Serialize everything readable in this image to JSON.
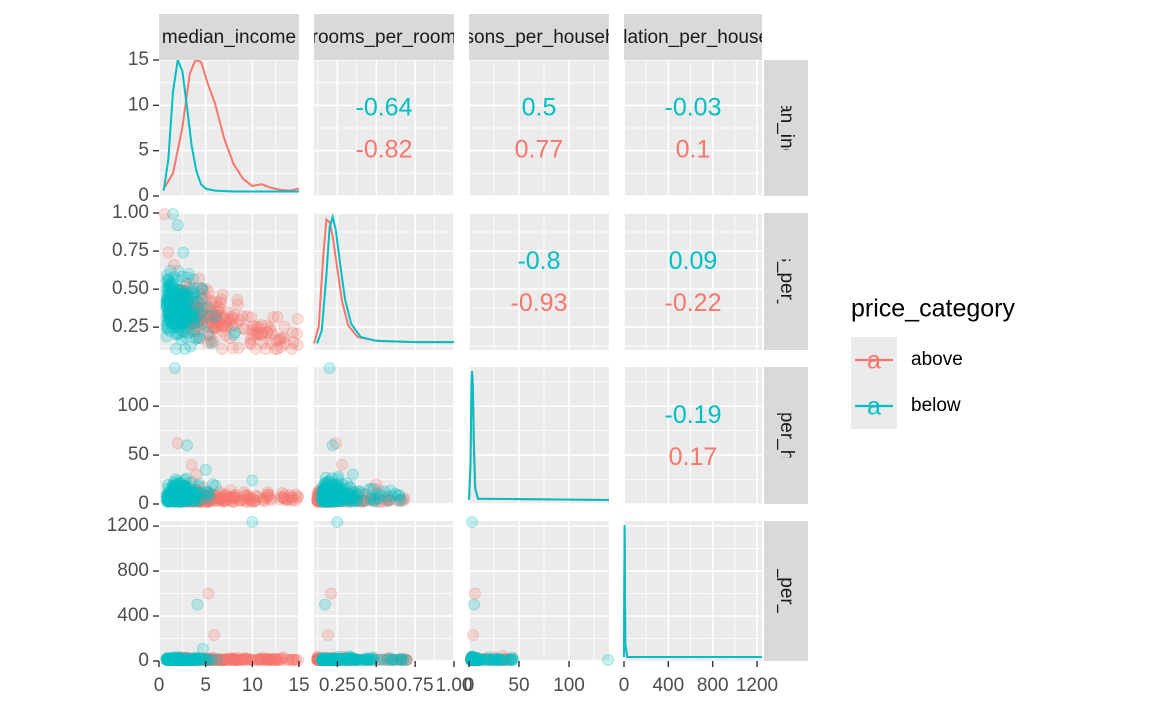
{
  "chart_data": {
    "type": "scatter",
    "variables": [
      "median_income",
      "rooms_per_room",
      "persons_per_household",
      "population_per_household"
    ],
    "strip_labels": {
      "columns": [
        "median_income",
        "rooms_per_room",
        "persons_per_household",
        "population_per_household"
      ],
      "rows": [
        "median_income",
        "rooms_per_room",
        "persons_per_household",
        "population_per_household"
      ]
    },
    "legend": {
      "title": "price_category",
      "key_glyph": "a",
      "placement": "right",
      "entries": [
        {
          "label": "above",
          "color": "#F8766D"
        },
        {
          "label": "below",
          "color": "#00BFC4"
        }
      ]
    },
    "colors": {
      "above": "#F8766D",
      "below": "#00BFC4",
      "panel_bg": "#EBEBEB",
      "strip_bg": "#D9D9D9",
      "grid": "#FFFFFF"
    },
    "axes": {
      "median_income": {
        "lim": [
          0,
          15
        ],
        "ticks": [
          0,
          5,
          10,
          15
        ],
        "tick_labels": [
          "0",
          "5",
          "10",
          "15"
        ]
      },
      "rooms_per_room": {
        "lim": [
          0.1,
          1.0
        ],
        "ticks": [
          0.25,
          0.5,
          0.75,
          1.0
        ],
        "tick_labels": [
          "0.25",
          "0.50",
          "0.75",
          "1.00"
        ]
      },
      "persons_per_household": {
        "lim": [
          0,
          140
        ],
        "ticks": [
          0,
          50,
          100
        ],
        "tick_labels": [
          "0",
          "50",
          "100"
        ]
      },
      "population_per_household": {
        "lim": [
          0,
          1245
        ],
        "ticks": [
          0,
          400,
          800,
          1200
        ],
        "tick_labels": [
          "0",
          "400",
          "800",
          "1200"
        ]
      },
      "density_row1": {
        "lim": [
          0,
          15
        ],
        "ticks": [
          0,
          5,
          10,
          15
        ],
        "tick_labels": [
          "0",
          "5",
          "10",
          "15"
        ]
      }
    },
    "correlations": [
      {
        "pair": [
          "median_income",
          "rooms_per_room"
        ],
        "below": "-0.64",
        "above": "-0.82"
      },
      {
        "pair": [
          "median_income",
          "persons_per_household"
        ],
        "below": "0.5",
        "above": "0.77"
      },
      {
        "pair": [
          "median_income",
          "population_per_household"
        ],
        "below": "-0.03",
        "above": "0.1"
      },
      {
        "pair": [
          "rooms_per_room",
          "persons_per_household"
        ],
        "below": "-0.8",
        "above": "-0.93"
      },
      {
        "pair": [
          "rooms_per_room",
          "population_per_household"
        ],
        "below": "0.09",
        "above": "-0.22"
      },
      {
        "pair": [
          "persons_per_household",
          "population_per_household"
        ],
        "below": "-0.19",
        "above": "0.17"
      }
    ],
    "densities": {
      "median_income": {
        "above": [
          [
            0.5,
            0.8
          ],
          [
            1.5,
            2.5
          ],
          [
            2.5,
            7.5
          ],
          [
            3.3,
            13.5
          ],
          [
            3.9,
            15.0
          ],
          [
            4.5,
            14.8
          ],
          [
            5.2,
            12.5
          ],
          [
            6.0,
            10.2
          ],
          [
            7.0,
            6.3
          ],
          [
            8.0,
            3.5
          ],
          [
            9.0,
            1.9
          ],
          [
            10.0,
            1.1
          ],
          [
            11.0,
            1.3
          ],
          [
            12.0,
            0.9
          ],
          [
            13.0,
            0.7
          ],
          [
            14.0,
            0.6
          ],
          [
            15.0,
            0.8
          ]
        ],
        "below": [
          [
            0.5,
            0.6
          ],
          [
            1.0,
            4.0
          ],
          [
            1.5,
            11.5
          ],
          [
            2.0,
            15.0
          ],
          [
            2.5,
            13.8
          ],
          [
            3.0,
            9.8
          ],
          [
            3.5,
            5.5
          ],
          [
            4.0,
            2.8
          ],
          [
            4.5,
            1.3
          ],
          [
            5.0,
            0.8
          ],
          [
            6.0,
            0.6
          ],
          [
            8.0,
            0.5
          ],
          [
            10.0,
            0.5
          ],
          [
            15.0,
            0.5
          ]
        ]
      },
      "rooms_per_room": {
        "above": [
          [
            0.1,
            0.02
          ],
          [
            0.13,
            0.15
          ],
          [
            0.16,
            0.7
          ],
          [
            0.18,
            0.98
          ],
          [
            0.2,
            0.96
          ],
          [
            0.22,
            0.85
          ],
          [
            0.25,
            0.6
          ],
          [
            0.28,
            0.35
          ],
          [
            0.32,
            0.16
          ],
          [
            0.38,
            0.07
          ],
          [
            0.5,
            0.04
          ],
          [
            0.75,
            0.03
          ],
          [
            1.0,
            0.03
          ]
        ],
        "below": [
          [
            0.12,
            0.02
          ],
          [
            0.15,
            0.12
          ],
          [
            0.18,
            0.55
          ],
          [
            0.2,
            0.92
          ],
          [
            0.22,
            1.0
          ],
          [
            0.24,
            0.9
          ],
          [
            0.27,
            0.62
          ],
          [
            0.3,
            0.36
          ],
          [
            0.34,
            0.17
          ],
          [
            0.4,
            0.07
          ],
          [
            0.5,
            0.04
          ],
          [
            0.75,
            0.03
          ],
          [
            1.0,
            0.03
          ]
        ]
      },
      "persons_per_household": {
        "above": [
          [
            0,
            0.0
          ],
          [
            1.5,
            0.25
          ],
          [
            2.5,
            0.85
          ],
          [
            3.2,
            0.97
          ],
          [
            4.0,
            0.85
          ],
          [
            5.0,
            0.4
          ],
          [
            6.5,
            0.08
          ],
          [
            9,
            0.01
          ],
          [
            140,
            0.0
          ]
        ],
        "below": [
          [
            0,
            0.0
          ],
          [
            1.5,
            0.3
          ],
          [
            2.5,
            0.9
          ],
          [
            3.0,
            1.0
          ],
          [
            3.8,
            0.9
          ],
          [
            4.8,
            0.45
          ],
          [
            6.0,
            0.1
          ],
          [
            9,
            0.01
          ],
          [
            140,
            0.0
          ]
        ]
      },
      "population_per_household": {
        "above": [
          [
            0,
            0.0
          ],
          [
            5,
            0.97
          ],
          [
            12,
            0.1
          ],
          [
            30,
            0.0
          ],
          [
            1245,
            0.0
          ]
        ],
        "below": [
          [
            0,
            0.0
          ],
          [
            5,
            1.0
          ],
          [
            12,
            0.1
          ],
          [
            30,
            0.0
          ],
          [
            1245,
            0.0
          ]
        ]
      }
    },
    "scatter_outliers": {
      "median_income_vs_rooms_per_room": [
        [
          1.5,
          1.0
        ],
        [
          0.6,
          1.0
        ],
        [
          2.0,
          0.92
        ],
        [
          1.0,
          0.74
        ],
        [
          2.6,
          0.74
        ],
        [
          1.6,
          0.66
        ],
        [
          3.2,
          0.6
        ],
        [
          4.3,
          0.57
        ],
        [
          4.6,
          0.5
        ],
        [
          5.7,
          0.35
        ],
        [
          8.0,
          0.2
        ],
        [
          11.0,
          0.2
        ]
      ],
      "median_income_vs_persons_per_household": [
        [
          1.7,
          140
        ],
        [
          2.0,
          62
        ],
        [
          3.0,
          60
        ],
        [
          3.5,
          40
        ],
        [
          5.0,
          35
        ],
        [
          4.0,
          30
        ],
        [
          10.0,
          24
        ]
      ],
      "median_income_vs_population_per_household": [
        [
          10.0,
          1245
        ],
        [
          5.3,
          600
        ],
        [
          4.1,
          502
        ],
        [
          5.9,
          230
        ],
        [
          4.7,
          110
        ]
      ],
      "rooms_per_room_vs_persons_per_household": [
        [
          0.2,
          140
        ],
        [
          0.24,
          62
        ],
        [
          0.22,
          60
        ],
        [
          0.28,
          40
        ],
        [
          0.35,
          30
        ],
        [
          0.5,
          20
        ]
      ],
      "rooms_per_room_vs_population_per_household": [
        [
          0.25,
          1245
        ],
        [
          0.21,
          600
        ],
        [
          0.17,
          502
        ],
        [
          0.19,
          230
        ]
      ],
      "persons_per_household_vs_population_per_household": [
        [
          3,
          1245
        ],
        [
          6,
          600
        ],
        [
          5,
          502
        ],
        [
          4,
          230
        ],
        [
          140,
          10
        ]
      ]
    }
  }
}
